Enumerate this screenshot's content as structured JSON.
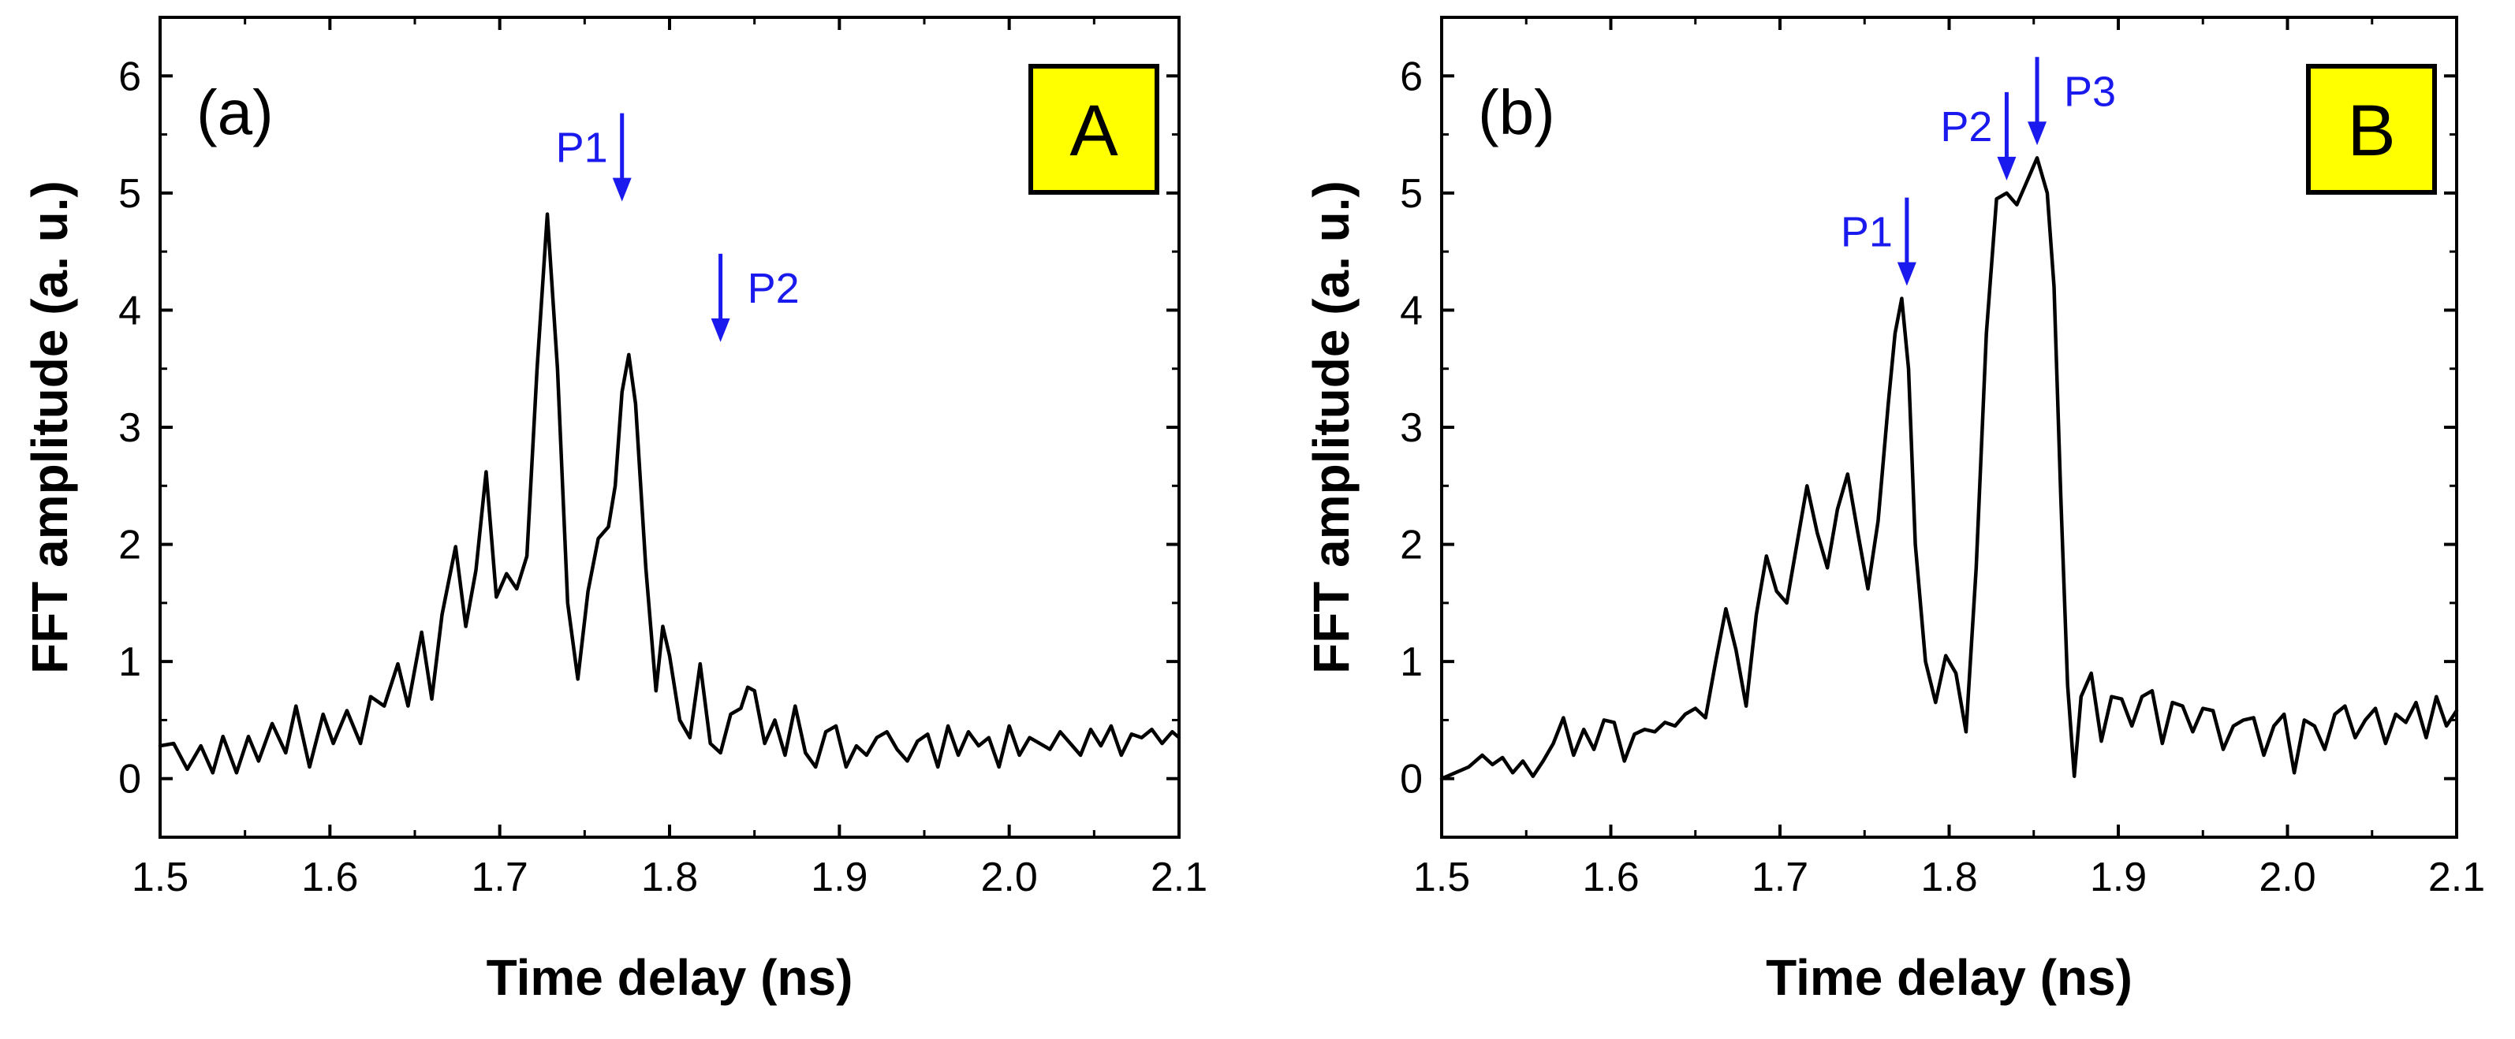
{
  "chart_data": [
    {
      "type": "line",
      "panel_label": "(a)",
      "box_label": "A",
      "box_color": "#ffff00",
      "xlabel": "Time delay (ns)",
      "ylabel": "FFT amplitude (a. u.)",
      "xlim": [
        1.5,
        2.1
      ],
      "ylim": [
        -0.5,
        6.5
      ],
      "xticks": [
        1.5,
        1.6,
        1.7,
        1.8,
        1.9,
        2.0,
        2.1
      ],
      "xtick_labels": [
        "1.5",
        "1.6",
        "1.7",
        "1.8",
        "1.9",
        "2.0",
        "2.1"
      ],
      "yticks": [
        0,
        1,
        2,
        3,
        4,
        5,
        6
      ],
      "ytick_labels": [
        "0",
        "1",
        "2",
        "3",
        "4",
        "5",
        "6"
      ],
      "line_color": "#000000",
      "annotation_color": "#1a1aee",
      "annotations": [
        {
          "text": "P1",
          "x": 1.772,
          "y": 4.82,
          "side": "left"
        },
        {
          "text": "P2",
          "x": 1.83,
          "y": 3.62,
          "side": "right"
        }
      ],
      "series": [
        {
          "name": "FFT amplitude",
          "x": [
            1.5,
            1.508,
            1.516,
            1.524,
            1.531,
            1.537,
            1.545,
            1.552,
            1.558,
            1.566,
            1.574,
            1.58,
            1.588,
            1.596,
            1.602,
            1.61,
            1.618,
            1.624,
            1.632,
            1.64,
            1.646,
            1.654,
            1.66,
            1.666,
            1.674,
            1.68,
            1.686,
            1.692,
            1.698,
            1.704,
            1.71,
            1.716,
            1.722,
            1.728,
            1.734,
            1.74,
            1.746,
            1.752,
            1.758,
            1.764,
            1.768,
            1.772,
            1.776,
            1.78,
            1.786,
            1.792,
            1.796,
            1.8,
            1.806,
            1.812,
            1.818,
            1.824,
            1.83,
            1.836,
            1.842,
            1.846,
            1.85,
            1.856,
            1.862,
            1.868,
            1.874,
            1.88,
            1.886,
            1.892,
            1.898,
            1.904,
            1.91,
            1.916,
            1.922,
            1.928,
            1.934,
            1.94,
            1.946,
            1.952,
            1.958,
            1.964,
            1.97,
            1.976,
            1.982,
            1.988,
            1.994,
            2.0,
            2.006,
            2.012,
            2.018,
            2.024,
            2.03,
            2.036,
            2.042,
            2.048,
            2.054,
            2.06,
            2.066,
            2.072,
            2.078,
            2.084,
            2.09,
            2.096,
            2.1
          ],
          "y": [
            0.28,
            0.3,
            0.08,
            0.28,
            0.05,
            0.36,
            0.05,
            0.36,
            0.15,
            0.47,
            0.22,
            0.62,
            0.1,
            0.55,
            0.3,
            0.58,
            0.3,
            0.7,
            0.62,
            0.98,
            0.62,
            1.25,
            0.68,
            1.4,
            1.98,
            1.3,
            1.78,
            2.62,
            1.55,
            1.75,
            1.62,
            1.9,
            3.5,
            4.82,
            3.5,
            1.5,
            0.85,
            1.6,
            2.05,
            2.15,
            2.5,
            3.3,
            3.62,
            3.2,
            1.8,
            0.75,
            1.3,
            1.05,
            0.5,
            0.35,
            0.98,
            0.3,
            0.22,
            0.55,
            0.6,
            0.78,
            0.75,
            0.3,
            0.5,
            0.2,
            0.62,
            0.22,
            0.1,
            0.4,
            0.45,
            0.1,
            0.28,
            0.2,
            0.35,
            0.4,
            0.25,
            0.15,
            0.32,
            0.38,
            0.1,
            0.45,
            0.2,
            0.4,
            0.28,
            0.35,
            0.1,
            0.45,
            0.2,
            0.35,
            0.3,
            0.25,
            0.4,
            0.3,
            0.2,
            0.42,
            0.28,
            0.45,
            0.2,
            0.38,
            0.35,
            0.42,
            0.3,
            0.4,
            0.35
          ]
        }
      ]
    },
    {
      "type": "line",
      "panel_label": "(b)",
      "box_label": "B",
      "box_color": "#ffff00",
      "xlabel": "Time delay (ns)",
      "ylabel": "FFT amplitude (a. u.)",
      "xlim": [
        1.5,
        2.1
      ],
      "ylim": [
        -0.5,
        6.5
      ],
      "xticks": [
        1.5,
        1.6,
        1.7,
        1.8,
        1.9,
        2.0,
        2.1
      ],
      "xtick_labels": [
        "1.5",
        "1.6",
        "1.7",
        "1.8",
        "1.9",
        "2.0",
        "2.1"
      ],
      "yticks": [
        0,
        1,
        2,
        3,
        4,
        5,
        6
      ],
      "ytick_labels": [
        "0",
        "1",
        "2",
        "3",
        "4",
        "5",
        "6"
      ],
      "line_color": "#000000",
      "annotation_color": "#1a1aee",
      "annotations": [
        {
          "text": "P1",
          "x": 1.775,
          "y": 4.1,
          "side": "left"
        },
        {
          "text": "P2",
          "x": 1.834,
          "y": 5.0,
          "side": "left"
        },
        {
          "text": "P3",
          "x": 1.852,
          "y": 5.3,
          "side": "right"
        }
      ],
      "series": [
        {
          "name": "FFT amplitude",
          "x": [
            1.5,
            1.508,
            1.516,
            1.524,
            1.53,
            1.536,
            1.542,
            1.548,
            1.554,
            1.56,
            1.566,
            1.572,
            1.578,
            1.584,
            1.59,
            1.596,
            1.602,
            1.608,
            1.614,
            1.62,
            1.626,
            1.632,
            1.638,
            1.644,
            1.65,
            1.656,
            1.662,
            1.668,
            1.674,
            1.68,
            1.686,
            1.692,
            1.698,
            1.704,
            1.71,
            1.716,
            1.722,
            1.728,
            1.734,
            1.74,
            1.746,
            1.752,
            1.758,
            1.764,
            1.768,
            1.772,
            1.776,
            1.78,
            1.786,
            1.792,
            1.798,
            1.804,
            1.81,
            1.816,
            1.822,
            1.828,
            1.834,
            1.84,
            1.846,
            1.852,
            1.858,
            1.862,
            1.866,
            1.87,
            1.874,
            1.878,
            1.884,
            1.89,
            1.896,
            1.902,
            1.908,
            1.914,
            1.92,
            1.926,
            1.932,
            1.938,
            1.944,
            1.95,
            1.956,
            1.962,
            1.968,
            1.974,
            1.98,
            1.986,
            1.992,
            1.998,
            2.004,
            2.01,
            2.016,
            2.022,
            2.028,
            2.034,
            2.04,
            2.046,
            2.052,
            2.058,
            2.064,
            2.07,
            2.076,
            2.082,
            2.088,
            2.094,
            2.1
          ],
          "y": [
            0.0,
            0.05,
            0.1,
            0.2,
            0.12,
            0.18,
            0.05,
            0.15,
            0.02,
            0.15,
            0.3,
            0.52,
            0.2,
            0.42,
            0.25,
            0.5,
            0.48,
            0.15,
            0.38,
            0.42,
            0.4,
            0.48,
            0.45,
            0.55,
            0.6,
            0.52,
            1.0,
            1.45,
            1.1,
            0.62,
            1.4,
            1.9,
            1.6,
            1.5,
            2.0,
            2.5,
            2.1,
            1.8,
            2.3,
            2.6,
            2.1,
            1.62,
            2.2,
            3.2,
            3.8,
            4.1,
            3.5,
            2.0,
            1.0,
            0.65,
            1.05,
            0.9,
            0.4,
            1.8,
            3.8,
            4.95,
            5.0,
            4.9,
            5.1,
            5.3,
            5.0,
            4.2,
            2.4,
            0.8,
            0.02,
            0.7,
            0.9,
            0.32,
            0.7,
            0.68,
            0.45,
            0.7,
            0.75,
            0.3,
            0.65,
            0.62,
            0.4,
            0.6,
            0.58,
            0.25,
            0.45,
            0.5,
            0.52,
            0.2,
            0.45,
            0.55,
            0.05,
            0.5,
            0.45,
            0.25,
            0.55,
            0.62,
            0.35,
            0.5,
            0.6,
            0.3,
            0.55,
            0.48,
            0.65,
            0.35,
            0.7,
            0.45,
            0.58
          ]
        }
      ]
    }
  ]
}
